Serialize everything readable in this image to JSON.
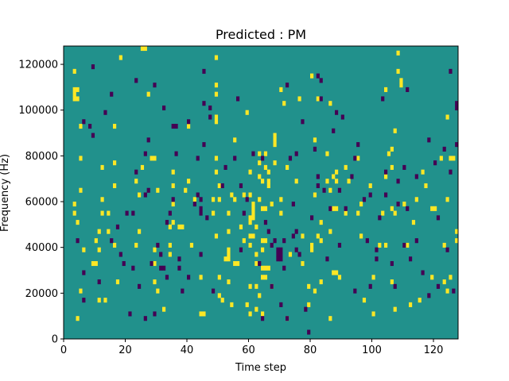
{
  "chart_data": {
    "type": "heatmap",
    "title": "Predicted : PM",
    "xlabel": "Time step",
    "ylabel": "Frequency (Hz)",
    "xlim": [
      0,
      128
    ],
    "ylim": [
      0,
      128000
    ],
    "xticks": [
      0,
      20,
      40,
      60,
      80,
      100,
      120
    ],
    "yticks": [
      0,
      20000,
      40000,
      60000,
      80000,
      100000,
      120000
    ],
    "xtick_labels": [
      "0",
      "20",
      "40",
      "60",
      "80",
      "100",
      "120"
    ],
    "ytick_labels": [
      "0",
      "20000",
      "40000",
      "60000",
      "80000",
      "100000",
      "120000"
    ],
    "grid_size": [
      128,
      64
    ],
    "colors": {
      "background": "#21918c",
      "high": "#fde725",
      "low": "#440154"
    },
    "legend": "none",
    "grid": false,
    "cells_high": [
      [
        4,
        4
      ],
      [
        4,
        25
      ],
      [
        3,
        27
      ],
      [
        3,
        29
      ],
      [
        5,
        32
      ],
      [
        5,
        39
      ],
      [
        5,
        46
      ],
      [
        4,
        52
      ],
      [
        4,
        54
      ],
      [
        3,
        58
      ],
      [
        3,
        52
      ],
      [
        3,
        53
      ],
      [
        3,
        54
      ],
      [
        6,
        19
      ],
      [
        5,
        10
      ],
      [
        9,
        16
      ],
      [
        10,
        16
      ],
      [
        10,
        21
      ],
      [
        11,
        8
      ],
      [
        11,
        19
      ],
      [
        11,
        23
      ],
      [
        12,
        27
      ],
      [
        12,
        30
      ],
      [
        12,
        37
      ],
      [
        14,
        23
      ],
      [
        14,
        27
      ],
      [
        13,
        8
      ],
      [
        16,
        20
      ],
      [
        16,
        33
      ],
      [
        16,
        46
      ],
      [
        17,
        12
      ],
      [
        16,
        38
      ],
      [
        18,
        61
      ],
      [
        23,
        20
      ],
      [
        23,
        34
      ],
      [
        24,
        23
      ],
      [
        24,
        31
      ],
      [
        25,
        37
      ],
      [
        26,
        63
      ],
      [
        25,
        63
      ],
      [
        27,
        53
      ],
      [
        28,
        39
      ],
      [
        29,
        39
      ],
      [
        29,
        12
      ],
      [
        30,
        10
      ],
      [
        30,
        32
      ],
      [
        29,
        16
      ],
      [
        29,
        19
      ],
      [
        32,
        6
      ],
      [
        34,
        18
      ],
      [
        34,
        20
      ],
      [
        34,
        24
      ],
      [
        35,
        25
      ],
      [
        35,
        29
      ],
      [
        35,
        33
      ],
      [
        35,
        36
      ],
      [
        37,
        24
      ],
      [
        38,
        24
      ],
      [
        39,
        32
      ],
      [
        40,
        34
      ],
      [
        41,
        20
      ],
      [
        40,
        46
      ],
      [
        42,
        30
      ],
      [
        44,
        5
      ],
      [
        45,
        5
      ],
      [
        44,
        13
      ],
      [
        48,
        27
      ],
      [
        49,
        22
      ],
      [
        48,
        30
      ],
      [
        49,
        36
      ],
      [
        49,
        39
      ],
      [
        50,
        9
      ],
      [
        50,
        13
      ],
      [
        50,
        30
      ],
      [
        50,
        33
      ],
      [
        49,
        47
      ],
      [
        49,
        48
      ],
      [
        49,
        53
      ],
      [
        49,
        55
      ],
      [
        49,
        61
      ],
      [
        51,
        8
      ],
      [
        53,
        12
      ],
      [
        52,
        17
      ],
      [
        53,
        17
      ],
      [
        53,
        19
      ],
      [
        53,
        23
      ],
      [
        53,
        18
      ],
      [
        53,
        27
      ],
      [
        54,
        7
      ],
      [
        54,
        31
      ],
      [
        55,
        16
      ],
      [
        55,
        30
      ],
      [
        55,
        43
      ],
      [
        56,
        16
      ],
      [
        57,
        24
      ],
      [
        58,
        21
      ],
      [
        58,
        31
      ],
      [
        59,
        7
      ],
      [
        59,
        49
      ],
      [
        60,
        5
      ],
      [
        60,
        11
      ],
      [
        60,
        20
      ],
      [
        60,
        22
      ],
      [
        60,
        25
      ],
      [
        60,
        26
      ],
      [
        60,
        31
      ],
      [
        60,
        36
      ],
      [
        61,
        22
      ],
      [
        61,
        26
      ],
      [
        61,
        27
      ],
      [
        61,
        28
      ],
      [
        61,
        29
      ],
      [
        62,
        6
      ],
      [
        62,
        11
      ],
      [
        62,
        16
      ],
      [
        62,
        18
      ],
      [
        62,
        24
      ],
      [
        63,
        30
      ],
      [
        63,
        35
      ],
      [
        63,
        38
      ],
      [
        63,
        40
      ],
      [
        64,
        5
      ],
      [
        63,
        9
      ],
      [
        64,
        13
      ],
      [
        64,
        15
      ],
      [
        64,
        19
      ],
      [
        64,
        21
      ],
      [
        64,
        28
      ],
      [
        64,
        34
      ],
      [
        65,
        13
      ],
      [
        65,
        15
      ],
      [
        65,
        21
      ],
      [
        65,
        28
      ],
      [
        65,
        37
      ],
      [
        65,
        40
      ],
      [
        66,
        15
      ],
      [
        66,
        33
      ],
      [
        66,
        34
      ],
      [
        66,
        36
      ],
      [
        67,
        11
      ],
      [
        67,
        29
      ],
      [
        68,
        38
      ],
      [
        68,
        42
      ],
      [
        68,
        43
      ],
      [
        68,
        44
      ],
      [
        70,
        27
      ],
      [
        70,
        30
      ],
      [
        70,
        54
      ],
      [
        71,
        51
      ],
      [
        72,
        4
      ],
      [
        72,
        37
      ],
      [
        73,
        18
      ],
      [
        75,
        34
      ],
      [
        76,
        52
      ],
      [
        77,
        16
      ],
      [
        77,
        22
      ],
      [
        79,
        7
      ],
      [
        79,
        11
      ],
      [
        80,
        19
      ],
      [
        80,
        20
      ],
      [
        81,
        10
      ],
      [
        81,
        31
      ],
      [
        80,
        57
      ],
      [
        81,
        43
      ],
      [
        82,
        22
      ],
      [
        82,
        52
      ],
      [
        83,
        12
      ],
      [
        83,
        21
      ],
      [
        83,
        25
      ],
      [
        85,
        34
      ],
      [
        85,
        40
      ],
      [
        86,
        4
      ],
      [
        86,
        23
      ],
      [
        86,
        32
      ],
      [
        86,
        51
      ],
      [
        87,
        14
      ],
      [
        87,
        28
      ],
      [
        87,
        35
      ],
      [
        88,
        28
      ],
      [
        88,
        36
      ],
      [
        88,
        34
      ],
      [
        88,
        14
      ],
      [
        89,
        13
      ],
      [
        91,
        27
      ],
      [
        91,
        37
      ],
      [
        92,
        34
      ],
      [
        95,
        27
      ],
      [
        95,
        39
      ],
      [
        96,
        22
      ],
      [
        96,
        29
      ],
      [
        97,
        8
      ],
      [
        99,
        33
      ],
      [
        100,
        5
      ],
      [
        100,
        13
      ],
      [
        102,
        20
      ],
      [
        104,
        20
      ],
      [
        103,
        27
      ],
      [
        104,
        35
      ],
      [
        104,
        54
      ],
      [
        105,
        40
      ],
      [
        106,
        12
      ],
      [
        107,
        6
      ],
      [
        106,
        41
      ],
      [
        106,
        28
      ],
      [
        106,
        37
      ],
      [
        107,
        27
      ],
      [
        107,
        45
      ],
      [
        108,
        58
      ],
      [
        108,
        62
      ],
      [
        109,
        55
      ],
      [
        109,
        56
      ],
      [
        110,
        29
      ],
      [
        111,
        20
      ],
      [
        112,
        7
      ],
      [
        113,
        25
      ],
      [
        114,
        30
      ],
      [
        115,
        8
      ],
      [
        116,
        36
      ],
      [
        117,
        33
      ],
      [
        119,
        13
      ],
      [
        119,
        28
      ],
      [
        120,
        28
      ],
      [
        122,
        39
      ],
      [
        123,
        12
      ],
      [
        123,
        20
      ],
      [
        124,
        10
      ],
      [
        125,
        13
      ],
      [
        126,
        39
      ],
      [
        127,
        21
      ],
      [
        127,
        23
      ],
      [
        124,
        48
      ],
      [
        125,
        39
      ],
      [
        124,
        30
      ]
    ],
    "cells_low": [
      [
        4,
        21
      ],
      [
        6,
        8
      ],
      [
        6,
        14
      ],
      [
        6,
        47
      ],
      [
        8,
        46
      ],
      [
        9,
        44
      ],
      [
        9,
        59
      ],
      [
        11,
        12
      ],
      [
        13,
        49
      ],
      [
        15,
        53
      ],
      [
        15,
        21
      ],
      [
        17,
        24
      ],
      [
        18,
        18
      ],
      [
        19,
        16
      ],
      [
        20,
        27
      ],
      [
        21,
        5
      ],
      [
        22,
        15
      ],
      [
        22,
        27
      ],
      [
        23,
        56
      ],
      [
        24,
        11
      ],
      [
        23,
        36
      ],
      [
        26,
        4
      ],
      [
        26,
        31
      ],
      [
        26,
        40
      ],
      [
        27,
        32
      ],
      [
        28,
        16
      ],
      [
        27,
        43
      ],
      [
        29,
        5
      ],
      [
        29,
        55
      ],
      [
        30,
        20
      ],
      [
        31,
        15
      ],
      [
        31,
        18
      ],
      [
        32,
        15
      ],
      [
        32,
        50
      ],
      [
        33,
        25
      ],
      [
        33,
        13
      ],
      [
        34,
        27
      ],
      [
        35,
        30
      ],
      [
        35,
        46
      ],
      [
        36,
        40
      ],
      [
        36,
        46
      ],
      [
        37,
        15
      ],
      [
        38,
        10
      ],
      [
        37,
        17
      ],
      [
        40,
        13
      ],
      [
        40,
        47
      ],
      [
        42,
        29
      ],
      [
        43,
        31
      ],
      [
        43,
        39
      ],
      [
        44,
        30
      ],
      [
        44,
        28
      ],
      [
        44,
        27
      ],
      [
        44,
        18
      ],
      [
        45,
        42
      ],
      [
        45,
        51
      ],
      [
        45,
        58
      ],
      [
        46,
        26
      ],
      [
        47,
        48
      ],
      [
        47,
        50
      ],
      [
        48,
        10
      ],
      [
        51,
        33
      ],
      [
        52,
        37
      ],
      [
        55,
        39
      ],
      [
        56,
        52
      ],
      [
        57,
        19
      ],
      [
        57,
        33
      ],
      [
        58,
        27
      ],
      [
        59,
        30
      ],
      [
        61,
        40
      ],
      [
        63,
        16
      ],
      [
        64,
        39
      ],
      [
        64,
        4
      ],
      [
        65,
        25
      ],
      [
        66,
        23
      ],
      [
        67,
        20
      ],
      [
        67,
        11
      ],
      [
        68,
        21
      ],
      [
        69,
        17
      ],
      [
        69,
        18
      ],
      [
        69,
        19
      ],
      [
        70,
        17
      ],
      [
        70,
        18
      ],
      [
        70,
        19
      ],
      [
        70,
        7
      ],
      [
        71,
        15
      ],
      [
        71,
        21
      ],
      [
        72,
        4
      ],
      [
        72,
        55
      ],
      [
        73,
        39
      ],
      [
        74,
        22
      ],
      [
        74,
        29
      ],
      [
        75,
        19
      ],
      [
        75,
        23
      ],
      [
        75,
        40
      ],
      [
        76,
        18
      ],
      [
        77,
        47
      ],
      [
        78,
        6
      ],
      [
        79,
        1
      ],
      [
        80,
        26
      ],
      [
        81,
        41
      ],
      [
        82,
        33
      ],
      [
        82,
        35
      ],
      [
        82,
        57
      ],
      [
        83,
        52
      ],
      [
        83,
        56
      ],
      [
        84,
        32
      ],
      [
        85,
        17
      ],
      [
        86,
        28
      ],
      [
        87,
        45
      ],
      [
        88,
        49
      ],
      [
        89,
        32
      ],
      [
        89,
        20
      ],
      [
        90,
        48
      ],
      [
        91,
        28
      ],
      [
        93,
        35
      ],
      [
        94,
        10
      ],
      [
        94,
        39
      ],
      [
        95,
        42
      ],
      [
        97,
        30
      ],
      [
        98,
        21
      ],
      [
        99,
        11
      ],
      [
        99,
        31
      ],
      [
        101,
        19
      ],
      [
        101,
        17
      ],
      [
        102,
        26
      ],
      [
        103,
        52
      ],
      [
        104,
        31
      ],
      [
        104,
        36
      ],
      [
        106,
        16
      ],
      [
        107,
        11
      ],
      [
        108,
        29
      ],
      [
        108,
        34
      ],
      [
        110,
        20
      ],
      [
        110,
        37
      ],
      [
        111,
        28
      ],
      [
        111,
        54
      ],
      [
        112,
        17
      ],
      [
        114,
        21
      ],
      [
        114,
        35
      ],
      [
        116,
        14
      ],
      [
        118,
        9
      ],
      [
        118,
        43
      ],
      [
        120,
        38
      ],
      [
        121,
        11
      ],
      [
        121,
        26
      ],
      [
        123,
        41
      ],
      [
        124,
        19
      ],
      [
        125,
        36
      ],
      [
        125,
        58
      ],
      [
        126,
        10
      ],
      [
        127,
        42
      ],
      [
        127,
        50
      ],
      [
        127,
        51
      ]
    ]
  }
}
